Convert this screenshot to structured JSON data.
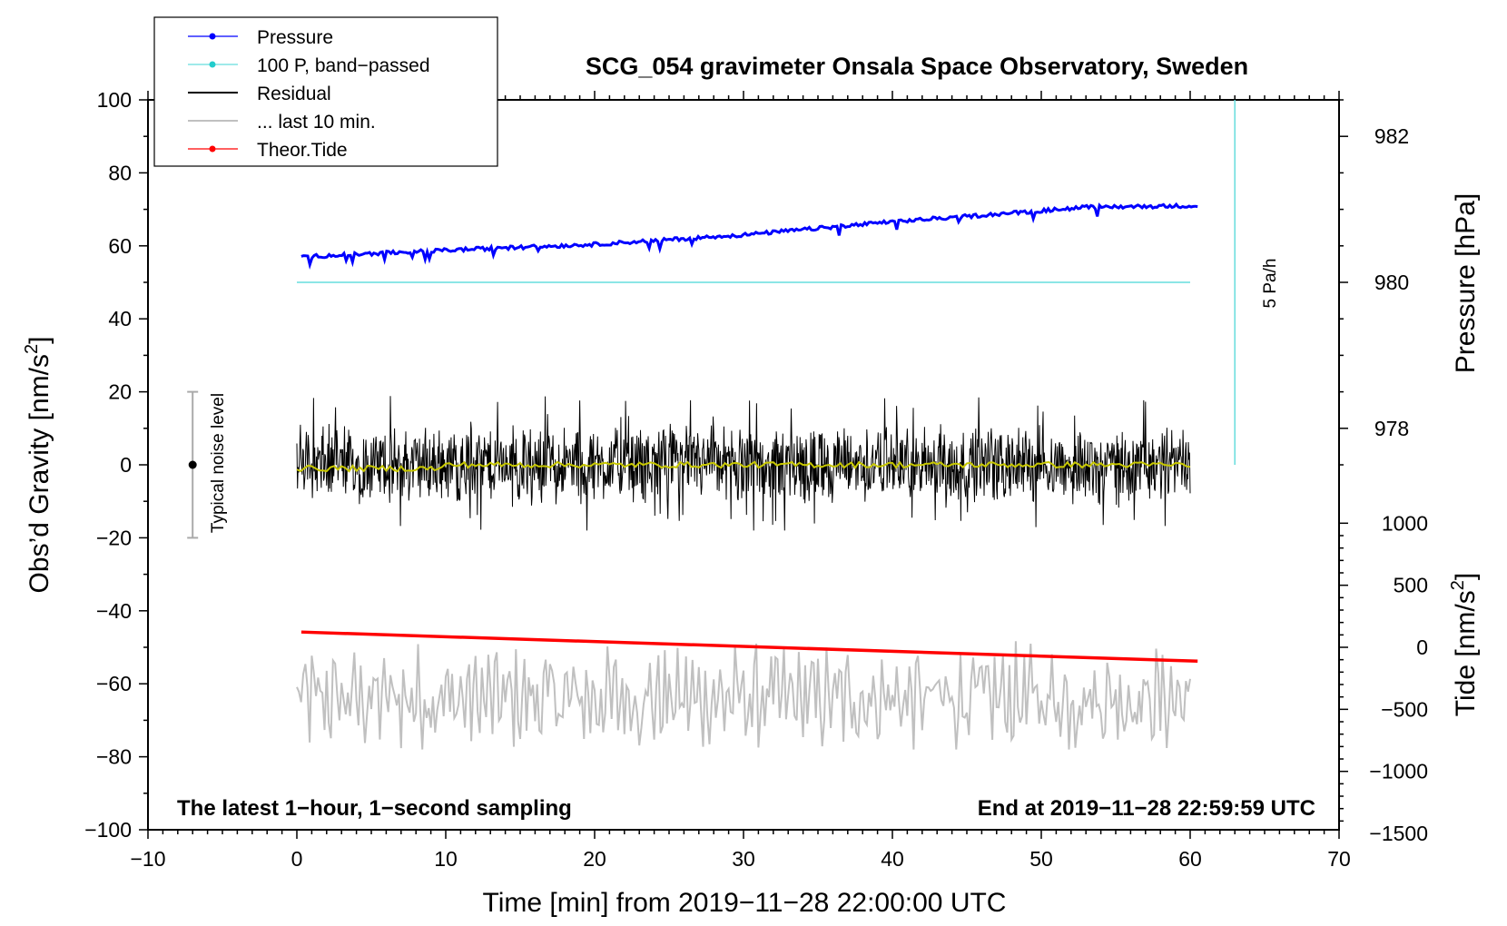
{
  "chart_data": {
    "type": "line",
    "title": "SCG_054 gravimeter Onsala Space Observatory, Sweden",
    "xlabel": "Time [min] from 2019−11−28 22:00:00 UTC",
    "ylabel_main": "Obs’d Gravity [nm/s",
    "ylabel_main_sup": "2",
    "ylabel_main_close": "]",
    "ylabel_pressure": "Pressure [hPa]",
    "ylabel_tide": "Tide [nm/s",
    "ylabel_tide_sup": "2",
    "ylabel_tide_close": "]",
    "xlim": [
      -10,
      70
    ],
    "ylim": [
      -100,
      100
    ],
    "xticks": [
      -10,
      0,
      10,
      20,
      30,
      40,
      50,
      60,
      70
    ],
    "xtick_labels": [
      "−10",
      "0",
      "10",
      "20",
      "30",
      "40",
      "50",
      "60",
      "70"
    ],
    "yticks": [
      100,
      80,
      60,
      40,
      20,
      0,
      -20,
      -40,
      -60,
      -80,
      -100
    ],
    "ytick_labels": [
      "100",
      "80",
      "60",
      "40",
      "20",
      "0",
      "−20",
      "−40",
      "−60",
      "−80",
      "−100"
    ],
    "pressure_axis": {
      "ticks": [
        982,
        980,
        978
      ],
      "tick_labels": [
        "982",
        "980",
        "978"
      ],
      "gravity_value_at_980": 50,
      "gravity_units_per_hPa": 20
    },
    "tide_axis": {
      "ticks": [
        1000,
        500,
        0,
        -500,
        -1000,
        -1500
      ],
      "tick_labels": [
        "1000",
        "500",
        "0",
        "−500",
        "−1000",
        "−1500"
      ],
      "gravity_value_at_0": -50,
      "gravity_units_per_500": 17
    },
    "series": [
      {
        "name": "Pressure",
        "color": "#0000ff",
        "units": "hPa",
        "x": [
          0.3,
          10,
          20,
          30,
          40,
          50,
          53,
          60.5
        ],
        "values": [
          980.35,
          980.44,
          980.52,
          980.65,
          980.83,
          980.98,
          981.03,
          981.05
        ]
      },
      {
        "name": "100 P, band−passed",
        "color": "#66dddd",
        "x": [
          0,
          60
        ],
        "values": [
          50,
          50
        ]
      },
      {
        "name": "Residual",
        "color": "#000000",
        "x_range": [
          0,
          60
        ],
        "amplitude": 11,
        "max": 22,
        "min": -18
      },
      {
        "name": "Residual running mean",
        "color": "#c8c800",
        "x_range": [
          0,
          60
        ],
        "level": 0
      },
      {
        "name": "... last 10 min.",
        "color": "#c0c0c0",
        "units": "nm/s2 (gravity axis)",
        "x_range": [
          0,
          60
        ],
        "center": -64,
        "min": -78,
        "max": -45
      },
      {
        "name": "Theor.Tide",
        "color": "#ff0000",
        "units": "nm/s2 (tide axis)",
        "x": [
          0.3,
          60.5
        ],
        "values": [
          123,
          -112
        ]
      }
    ],
    "legend_entries": [
      "Pressure",
      "100 P, band−passed",
      "Residual",
      "... last 10 min.",
      "Theor.Tide"
    ],
    "legend_position": "top-left",
    "noise_bar": {
      "label": "Typical noise level",
      "x": -7,
      "center": 0,
      "low": -20,
      "high": 20
    },
    "rate_bar": {
      "label": "5 Pa/h",
      "x": 63,
      "from": 0,
      "to": 100
    },
    "annotations": {
      "bottom_left": "The latest 1−hour, 1−second sampling",
      "bottom_right": "End at 2019−11−28 22:59:59 UTC"
    }
  }
}
